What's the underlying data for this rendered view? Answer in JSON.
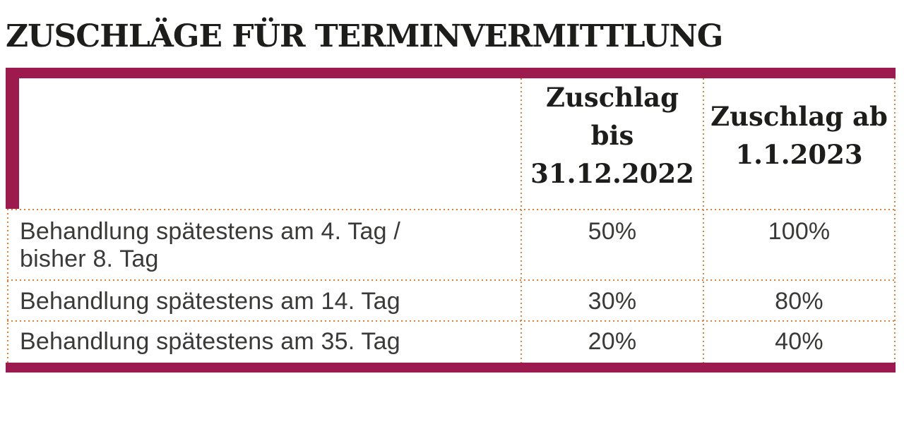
{
  "title": "ZUSCHLÄGE FÜR TERMINVERMITTLUNG",
  "colors": {
    "accent": "#9c1a4e",
    "divider": "#e0803a",
    "ink": "#1d1d1b",
    "text": "#3a3a39"
  },
  "table": {
    "headers": {
      "before": "Zuschlag bis\n31.12.2022",
      "after": "Zuschlag ab\n1.1.2023"
    },
    "rows": [
      {
        "label": "Behandlung spätestens am 4. Tag /\nbisher 8. Tag",
        "before": "50%",
        "after": "100%"
      },
      {
        "label": "Behandlung spätestens am 14. Tag",
        "before": "30%",
        "after": "80%"
      },
      {
        "label": "Behandlung spätestens am 35. Tag",
        "before": "20%",
        "after": "40%"
      }
    ]
  },
  "chart_data": {
    "type": "table",
    "title": "Zuschläge für Terminvermittlung",
    "columns": [
      "",
      "Zuschlag bis 31.12.2022",
      "Zuschlag ab 1.1.2023"
    ],
    "rows": [
      [
        "Behandlung spätestens am 4. Tag / bisher 8. Tag",
        "50%",
        "100%"
      ],
      [
        "Behandlung spätestens am 14. Tag",
        "30%",
        "80%"
      ],
      [
        "Behandlung spätestens am 35. Tag",
        "20%",
        "40%"
      ]
    ]
  }
}
